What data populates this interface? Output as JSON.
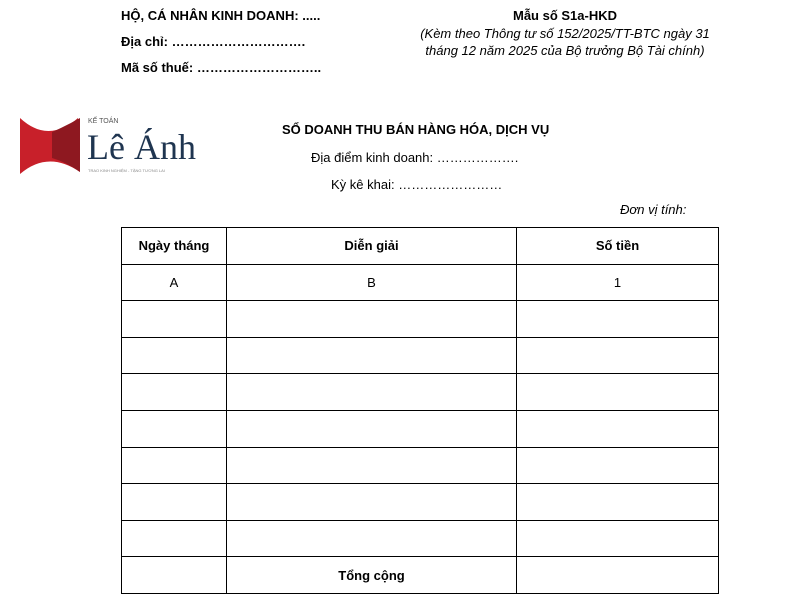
{
  "header_left": {
    "business": "HỘ, CÁ NHÂN KINH DOANH: .....",
    "address": "Địa chỉ: ………………………….",
    "tax_code": "Mã số thuế: ……………………….."
  },
  "header_right": {
    "form_no": "Mẫu số S1a-HKD",
    "note_line1": "(Kèm theo Thông tư số 152/2025/TT-BTC ngày 31",
    "note_line2": "tháng 12 năm 2025 của Bộ trưởng Bộ Tài chính)"
  },
  "logo": {
    "top": "KẾ TOÁN",
    "name": "Lê Ánh",
    "tagline": "TRAO KINH NGHIỆM - TẶNG TƯƠNG LAI",
    "color": "#c8202a",
    "text_color": "#1f3550"
  },
  "title": "SỔ DOANH THU BÁN HÀNG HÓA, DỊCH VỤ",
  "location": "Địa điểm kinh doanh: ……………….",
  "period": "Kỳ kê khai: ……………………",
  "unit": "Đơn vị tính:",
  "table": {
    "headers": [
      "Ngày tháng",
      "Diễn giải",
      "Số tiền"
    ],
    "codes": [
      "A",
      "B",
      "1"
    ],
    "total_label": "Tổng cộng"
  }
}
